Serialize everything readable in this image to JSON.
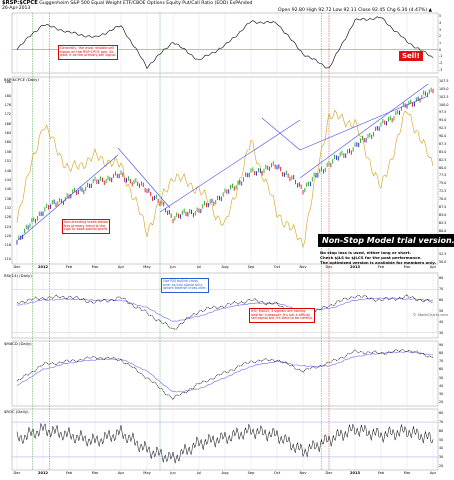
{
  "header": {
    "ticker": "$RSP:$CPCE",
    "description": "Guggenheim S&P 500 Equal Weight ETF/CBOE Options Equity Put/Call Ratio (EOD) ExPAnded",
    "date": "26-Apr-2013",
    "ohlc": "Open 92.80  High 92.72  Low 92.11  Close 92.45  Chg 6.30 (4.47%) ▲"
  },
  "credit": "© StockCharts.com",
  "panels": {
    "oscillator": {
      "title": "",
      "ticks": [
        "5",
        "4",
        "3",
        "2",
        "1",
        "0",
        "-1",
        "-2",
        "-3"
      ],
      "range": [
        -3.5,
        5.5
      ]
    },
    "price": {
      "title": "RSP:$CPCE (Daily)",
      "left_ticks": [
        "186",
        "180",
        "176",
        "172",
        "168",
        "164",
        "160",
        "156",
        "152",
        "148",
        "144",
        "140",
        "136",
        "132",
        "128",
        "124",
        "120",
        "116",
        "110"
      ],
      "right_ticks": [
        "107.5",
        "105.0",
        "102.5",
        "100.0",
        "97.5",
        "95.0",
        "92.5",
        "90.0",
        "87.5",
        "85.0",
        "82.5",
        "80.0",
        "77.5",
        "75.0",
        "72.5",
        "70.0",
        "67.5",
        "65.0",
        "62.5",
        "60.0",
        "57.5",
        "55.0",
        "52.5",
        "50.0"
      ],
      "range": [
        108,
        188
      ]
    },
    "rsi": {
      "title": "RSI(14) (Daily)",
      "ticks": [
        "80",
        "70",
        "60",
        "50",
        "40",
        "30"
      ],
      "range": [
        25,
        85
      ]
    },
    "macd": {
      "title": "$MACD (Daily)",
      "ticks": [
        "90",
        "80",
        "70",
        "60",
        "50",
        "40",
        "30",
        "20"
      ],
      "range": [
        15,
        95
      ]
    },
    "roc": {
      "title": "$ROC (Daily)",
      "ticks": [
        "80",
        "70",
        "60",
        "50",
        "40",
        "30",
        "20"
      ],
      "range": [
        15,
        85
      ]
    }
  },
  "x_axis": {
    "months": [
      {
        "label": "Dec",
        "bold": false
      },
      {
        "label": "2012",
        "bold": true
      },
      {
        "label": "Feb",
        "bold": false
      },
      {
        "label": "Mar",
        "bold": false
      },
      {
        "label": "Apr",
        "bold": false
      },
      {
        "label": "May",
        "bold": false
      },
      {
        "label": "Jun",
        "bold": false
      },
      {
        "label": "Jul",
        "bold": false
      },
      {
        "label": "Aug",
        "bold": false
      },
      {
        "label": "Sep",
        "bold": false
      },
      {
        "label": "Oct",
        "bold": false
      },
      {
        "label": "Nov",
        "bold": false
      },
      {
        "label": "Dec",
        "bold": false
      },
      {
        "label": "2013",
        "bold": true
      },
      {
        "label": "Feb",
        "bold": false
      },
      {
        "label": "Mar",
        "bold": false
      },
      {
        "label": "Apr",
        "bold": false
      }
    ]
  },
  "annotations": {
    "top_note": "Generally, the most reliable sell\nsignal on the RSP:CPCE pair. So\nwait, it as the primary sell signal.",
    "price_note": "Non-trending break below\nthis primary trend is the\nsign to book partial profit.",
    "rsi_note": "Use RSI bullish cross\nover as buy signal only,\nignore bearish cross over.",
    "macd_note": "RSI, MACD, 3 signals are having\nbearish crossover. It's not a official\nsell signal but it's time to be careful.",
    "sell_label": "Sell!",
    "trial_title": "Non-Stop Model trial version.",
    "trial_text": "No stop loss is used, either long or short.\nCheck $JLS to $JLCS for the past performance.\nThe optimized version is available for members only."
  },
  "colors": {
    "up_bar": "#1fa61f",
    "down_bar": "#e01010",
    "neutral_bar": "#1d1dd0",
    "overlay_line": "#d4a11c",
    "trend_line": "#4a4ae8",
    "signal_line": "#6b6bff",
    "grid": "#dddddd",
    "green_marker": "#3aa33a",
    "red_marker": "#e23c3c"
  },
  "chart_data": [
    {
      "type": "line",
      "title": "",
      "panel": "oscillator",
      "x": [
        "Dec",
        "2012",
        "Feb",
        "Mar",
        "Apr",
        "May",
        "Jun",
        "Jul",
        "Aug",
        "Sep",
        "Oct",
        "Nov",
        "Dec",
        "2013",
        "Feb",
        "Mar",
        "Apr"
      ],
      "series": [
        {
          "values": [
            0.2,
            3.8,
            2.6,
            1.8,
            3.6,
            -2.6,
            1.2,
            -1.6,
            0.6,
            4.2,
            4.0,
            -0.6,
            -2.8,
            4.4,
            4.8,
            1.2,
            -1.2
          ]
        }
      ],
      "ylim": [
        -3.5,
        5.5
      ]
    },
    {
      "type": "line",
      "title": "RSP:$CPCE (Daily)",
      "panel": "price",
      "x": [
        "Dec",
        "2012",
        "Feb",
        "Mar",
        "Apr",
        "May",
        "Jun",
        "Jul",
        "Aug",
        "Sep",
        "Oct",
        "Nov",
        "Dec",
        "2013",
        "Feb",
        "Mar",
        "Apr"
      ],
      "series": [
        {
          "values": [
            118,
            131,
            137,
            143,
            146,
            140,
            128,
            131,
            138,
            147,
            150,
            140,
            151,
            158,
            167,
            176,
            182
          ]
        },
        {
          "values": [
            128,
            168,
            148,
            154,
            150,
            122,
            146,
            140,
            124,
            160,
            130,
            117,
            172,
            168,
            140,
            174,
            150
          ]
        }
      ],
      "ylim": [
        108,
        188
      ]
    },
    {
      "type": "line",
      "title": "RSI(14) (Daily)",
      "panel": "rsi",
      "x": [
        "Dec",
        "2012",
        "Feb",
        "Mar",
        "Apr",
        "May",
        "Jun",
        "Jul",
        "Aug",
        "Sep",
        "Oct",
        "Nov",
        "Dec",
        "2013",
        "Feb",
        "Mar",
        "Apr"
      ],
      "series": [
        {
          "values": [
            58,
            62,
            63,
            58,
            62,
            48,
            33,
            50,
            55,
            60,
            56,
            44,
            55,
            64,
            60,
            63,
            58
          ]
        },
        {
          "values": [
            55,
            60,
            61,
            60,
            60,
            53,
            40,
            45,
            53,
            57,
            57,
            50,
            52,
            60,
            62,
            61,
            60
          ]
        }
      ],
      "ylim": [
        25,
        85
      ]
    },
    {
      "type": "line",
      "title": "$MACD (Daily)",
      "panel": "macd",
      "x": [
        "Dec",
        "2012",
        "Feb",
        "Mar",
        "Apr",
        "May",
        "Jun",
        "Jul",
        "Aug",
        "Sep",
        "Oct",
        "Nov",
        "Dec",
        "2013",
        "Feb",
        "Mar",
        "Apr"
      ],
      "series": [
        {
          "values": [
            45,
            66,
            70,
            75,
            72,
            50,
            24,
            42,
            56,
            70,
            72,
            58,
            68,
            82,
            80,
            84,
            75
          ]
        },
        {
          "values": [
            40,
            60,
            68,
            72,
            73,
            58,
            32,
            36,
            50,
            64,
            70,
            64,
            64,
            76,
            80,
            82,
            78
          ]
        }
      ],
      "ylim": [
        15,
        95
      ]
    },
    {
      "type": "line",
      "title": "$ROC (Daily)",
      "panel": "roc",
      "x": [
        "Dec",
        "2012",
        "Feb",
        "Mar",
        "Apr",
        "May",
        "Jun",
        "Jul",
        "Aug",
        "Sep",
        "Oct",
        "Nov",
        "Dec",
        "2013",
        "Feb",
        "Mar",
        "Apr"
      ],
      "series": [
        {
          "values": [
            50,
            62,
            55,
            48,
            58,
            38,
            28,
            46,
            52,
            60,
            55,
            36,
            50,
            62,
            55,
            60,
            50
          ]
        }
      ],
      "ylim": [
        15,
        85
      ]
    }
  ]
}
